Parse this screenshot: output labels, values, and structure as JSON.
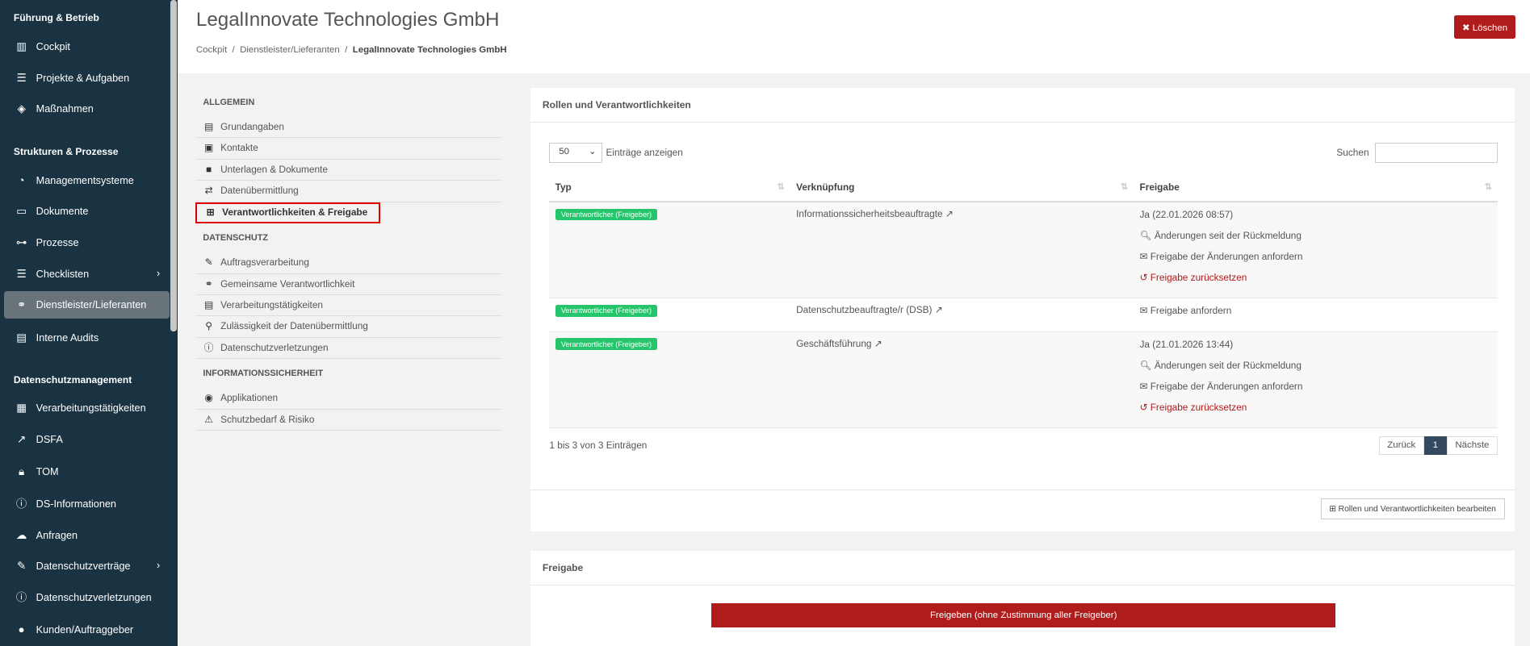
{
  "sidebar": {
    "sections": [
      {
        "title": "Führung & Betrieb",
        "items": [
          {
            "label": "Cockpit",
            "icon": "chart-bar-icon"
          },
          {
            "label": "Projekte & Aufgaben",
            "icon": "tasks-icon"
          },
          {
            "label": "Maßnahmen",
            "icon": "directions-icon"
          }
        ]
      },
      {
        "title": "Strukturen & Prozesse",
        "items": [
          {
            "label": "Managementsysteme",
            "icon": "gauge-icon"
          },
          {
            "label": "Dokumente",
            "icon": "folder-icon"
          },
          {
            "label": "Prozesse",
            "icon": "sitemap-icon"
          },
          {
            "label": "Checklisten",
            "icon": "list-icon",
            "chevron": true
          },
          {
            "label": "Dienstleister/Lieferanten",
            "icon": "handshake-icon",
            "active": true
          },
          {
            "label": "Interne Audits",
            "icon": "clipboard-icon"
          }
        ]
      },
      {
        "title": "Datenschutzmanagement",
        "items": [
          {
            "label": "Verarbeitungstätigkeiten",
            "icon": "table-icon"
          },
          {
            "label": "DSFA",
            "icon": "line-chart-icon"
          },
          {
            "label": "TOM",
            "icon": "lock-icon"
          },
          {
            "label": "DS-Informationen",
            "icon": "info-icon"
          },
          {
            "label": "Anfragen",
            "icon": "comments-icon"
          },
          {
            "label": "Datenschutzverträge",
            "icon": "contract-icon",
            "chevron": true
          },
          {
            "label": "Datenschutzverletzungen",
            "icon": "exclamation-icon"
          },
          {
            "label": "Kunden/Auftraggeber",
            "icon": "user-icon"
          }
        ]
      }
    ]
  },
  "header": {
    "title": "LegalInnovate Technologies GmbH",
    "breadcrumb": [
      "Cockpit",
      "Dienstleister/Lieferanten",
      "LegalInnovate Technologies GmbH"
    ],
    "delete_label": "Löschen"
  },
  "subnav": {
    "sections": [
      {
        "title": "ALLGEMEIN",
        "items": [
          "Grundangaben",
          "Kontakte",
          "Unterlagen & Dokumente",
          "Datenübermittlung",
          "Verantwortlichkeiten & Freigabe"
        ]
      },
      {
        "title": "DATENSCHUTZ",
        "items": [
          "Auftragsverarbeitung",
          "Gemeinsame Verantwortlichkeit",
          "Verarbeitungstätigkeiten",
          "Zulässigkeit der Datenübermittlung",
          "Datenschutzverletzungen"
        ]
      },
      {
        "title": "INFORMATIONSSICHERHEIT",
        "items": [
          "Applikationen",
          "Schutzbedarf & Risiko"
        ]
      }
    ],
    "selected": "Verantwortlichkeiten & Freigabe"
  },
  "roles": {
    "title": "Rollen und Verantwortlichkeiten",
    "page_size": "50",
    "page_size_label": "Einträge anzeigen",
    "search_label": "Suchen",
    "search_value": "",
    "columns": [
      "Typ",
      "Verknüpfung",
      "Freigabe"
    ],
    "rows": [
      {
        "type": "Verantwortlicher (Freigeber)",
        "link": "Informationssicherheitsbeauftragte",
        "status": "Ja (22.01.2026 08:57)",
        "actions": [
          "Änderungen seit der Rückmeldung",
          "Freigabe der Änderungen anfordern",
          "Freigabe zurücksetzen"
        ]
      },
      {
        "type": "Verantwortlicher (Freigeber)",
        "link": "Datenschutzbeauftragte/r (DSB)",
        "status": "",
        "actions": [
          "Freigabe anfordern"
        ]
      },
      {
        "type": "Verantwortlicher (Freigeber)",
        "link": "Geschäftsführung",
        "status": "Ja (21.01.2026 13:44)",
        "actions": [
          "Änderungen seit der Rückmeldung",
          "Freigabe der Änderungen anfordern",
          "Freigabe zurücksetzen"
        ]
      }
    ],
    "info": "1 bis 3 von 3 Einträgen",
    "pagination": {
      "prev": "Zurück",
      "current": "1",
      "next": "Nächste"
    },
    "edit_label": "Rollen und Verantwortlichkeiten bearbeiten"
  },
  "release": {
    "title": "Freigabe",
    "button": "Freigeben (ohne Zustimmung aller Freigeber)"
  },
  "colors": {
    "sidebar": "#1a3342",
    "accent_red": "#b01c1c",
    "badge_green": "#26c56b"
  }
}
